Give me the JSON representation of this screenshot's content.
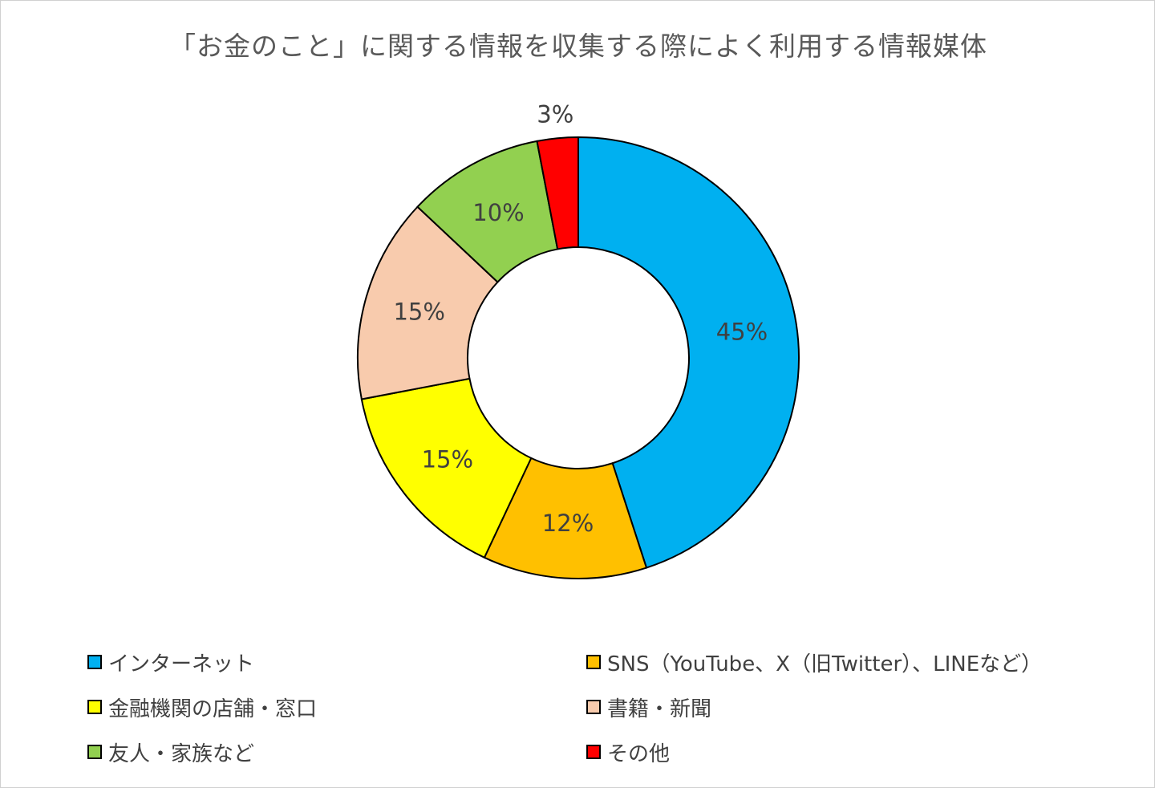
{
  "chart_data": {
    "type": "pie",
    "style": "donut",
    "title": "「お金のこと」に関する情報を収集する際によく利用する情報媒体",
    "slices": [
      {
        "label": "インターネット",
        "value": 45,
        "display": "45%",
        "color": "#00B0F0"
      },
      {
        "label": "SNS（YouTube、X（旧Twitter）、LINEなど）",
        "value": 12,
        "display": "12%",
        "color": "#FFC000"
      },
      {
        "label": "金融機関の店舗・窓口",
        "value": 15,
        "display": "15%",
        "color": "#FFFF00"
      },
      {
        "label": "書籍・新聞",
        "value": 15,
        "display": "15%",
        "color": "#F8CBAD"
      },
      {
        "label": "友人・家族など",
        "value": 10,
        "display": "10%",
        "color": "#92D050"
      },
      {
        "label": "その他",
        "value": 3,
        "display": "3%",
        "color": "#FF0000"
      }
    ],
    "start_angle": "12 o'clock",
    "direction": "clockwise",
    "legend_position": "bottom"
  }
}
